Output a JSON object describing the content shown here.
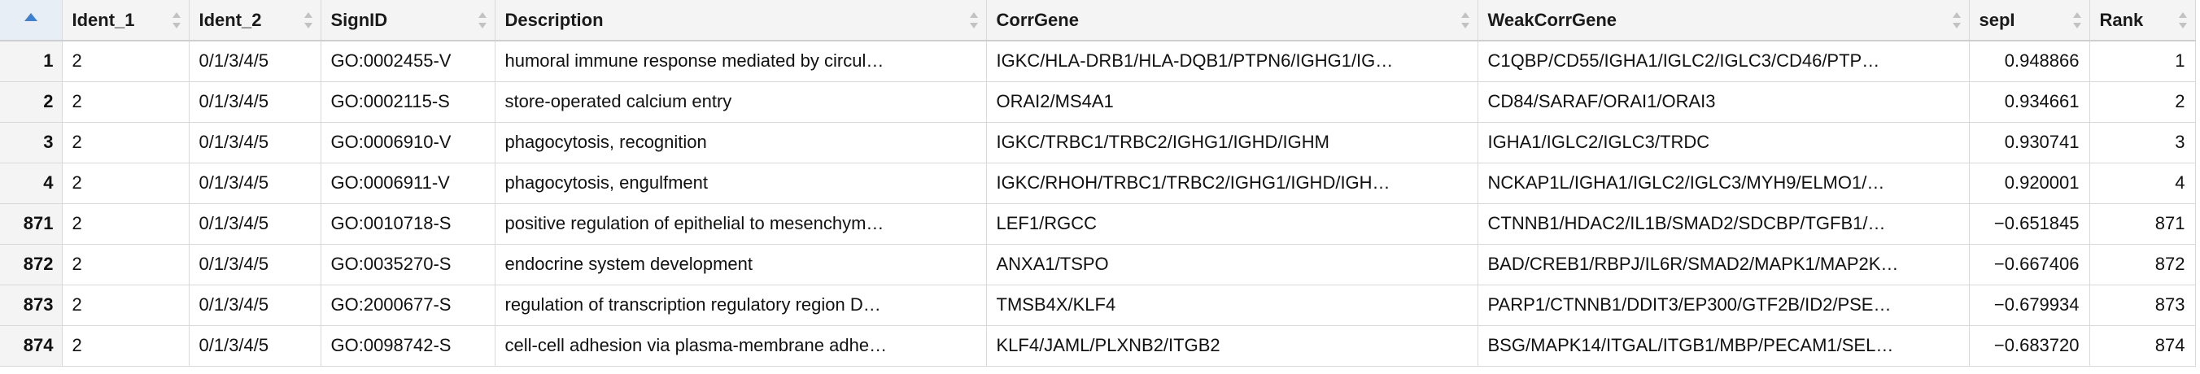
{
  "table": {
    "columns": [
      {
        "key": "rowname",
        "label": ""
      },
      {
        "key": "ident1",
        "label": "Ident_1"
      },
      {
        "key": "ident2",
        "label": "Ident_2"
      },
      {
        "key": "signid",
        "label": "SignID"
      },
      {
        "key": "description",
        "label": "Description"
      },
      {
        "key": "corrgene",
        "label": "CorrGene"
      },
      {
        "key": "weakcorrgene",
        "label": "WeakCorrGene"
      },
      {
        "key": "sepi",
        "label": "sepI"
      },
      {
        "key": "rank",
        "label": "Rank"
      }
    ],
    "sort_indicator": "sort-ascending-icon",
    "accent_color": "#3b82d6",
    "rows": [
      {
        "rowname": "1",
        "ident1": "2",
        "ident2": "0/1/3/4/5",
        "signid": "GO:0002455-V",
        "description": "humoral immune response mediated by circul…",
        "corrgene": "IGKC/HLA-DRB1/HLA-DQB1/PTPN6/IGHG1/IG…",
        "weakcorrgene": "C1QBP/CD55/IGHA1/IGLC2/IGLC3/CD46/PTP…",
        "sepi": "0.948866",
        "rank": "1"
      },
      {
        "rowname": "2",
        "ident1": "2",
        "ident2": "0/1/3/4/5",
        "signid": "GO:0002115-S",
        "description": "store-operated calcium entry",
        "corrgene": "ORAI2/MS4A1",
        "weakcorrgene": "CD84/SARAF/ORAI1/ORAI3",
        "sepi": "0.934661",
        "rank": "2"
      },
      {
        "rowname": "3",
        "ident1": "2",
        "ident2": "0/1/3/4/5",
        "signid": "GO:0006910-V",
        "description": "phagocytosis, recognition",
        "corrgene": "IGKC/TRBC1/TRBC2/IGHG1/IGHD/IGHM",
        "weakcorrgene": "IGHA1/IGLC2/IGLC3/TRDC",
        "sepi": "0.930741",
        "rank": "3"
      },
      {
        "rowname": "4",
        "ident1": "2",
        "ident2": "0/1/3/4/5",
        "signid": "GO:0006911-V",
        "description": "phagocytosis, engulfment",
        "corrgene": "IGKC/RHOH/TRBC1/TRBC2/IGHG1/IGHD/IGH…",
        "weakcorrgene": "NCKAP1L/IGHA1/IGLC2/IGLC3/MYH9/ELMO1/…",
        "sepi": "0.920001",
        "rank": "4"
      },
      {
        "rowname": "871",
        "ident1": "2",
        "ident2": "0/1/3/4/5",
        "signid": "GO:0010718-S",
        "description": "positive regulation of epithelial to mesenchym…",
        "corrgene": "LEF1/RGCC",
        "weakcorrgene": "CTNNB1/HDAC2/IL1B/SMAD2/SDCBP/TGFB1/…",
        "sepi": "−0.651845",
        "rank": "871"
      },
      {
        "rowname": "872",
        "ident1": "2",
        "ident2": "0/1/3/4/5",
        "signid": "GO:0035270-S",
        "description": "endocrine system development",
        "corrgene": "ANXA1/TSPO",
        "weakcorrgene": "BAD/CREB1/RBPJ/IL6R/SMAD2/MAPK1/MAP2K…",
        "sepi": "−0.667406",
        "rank": "872"
      },
      {
        "rowname": "873",
        "ident1": "2",
        "ident2": "0/1/3/4/5",
        "signid": "GO:2000677-S",
        "description": "regulation of transcription regulatory region D…",
        "corrgene": "TMSB4X/KLF4",
        "weakcorrgene": "PARP1/CTNNB1/DDIT3/EP300/GTF2B/ID2/PSE…",
        "sepi": "−0.679934",
        "rank": "873"
      },
      {
        "rowname": "874",
        "ident1": "2",
        "ident2": "0/1/3/4/5",
        "signid": "GO:0098742-S",
        "description": "cell-cell adhesion via plasma-membrane adhe…",
        "corrgene": "KLF4/JAML/PLXNB2/ITGB2",
        "weakcorrgene": "BSG/MAPK14/ITGAL/ITGB1/MBP/PECAM1/SEL…",
        "sepi": "−0.683720",
        "rank": "874"
      }
    ]
  }
}
